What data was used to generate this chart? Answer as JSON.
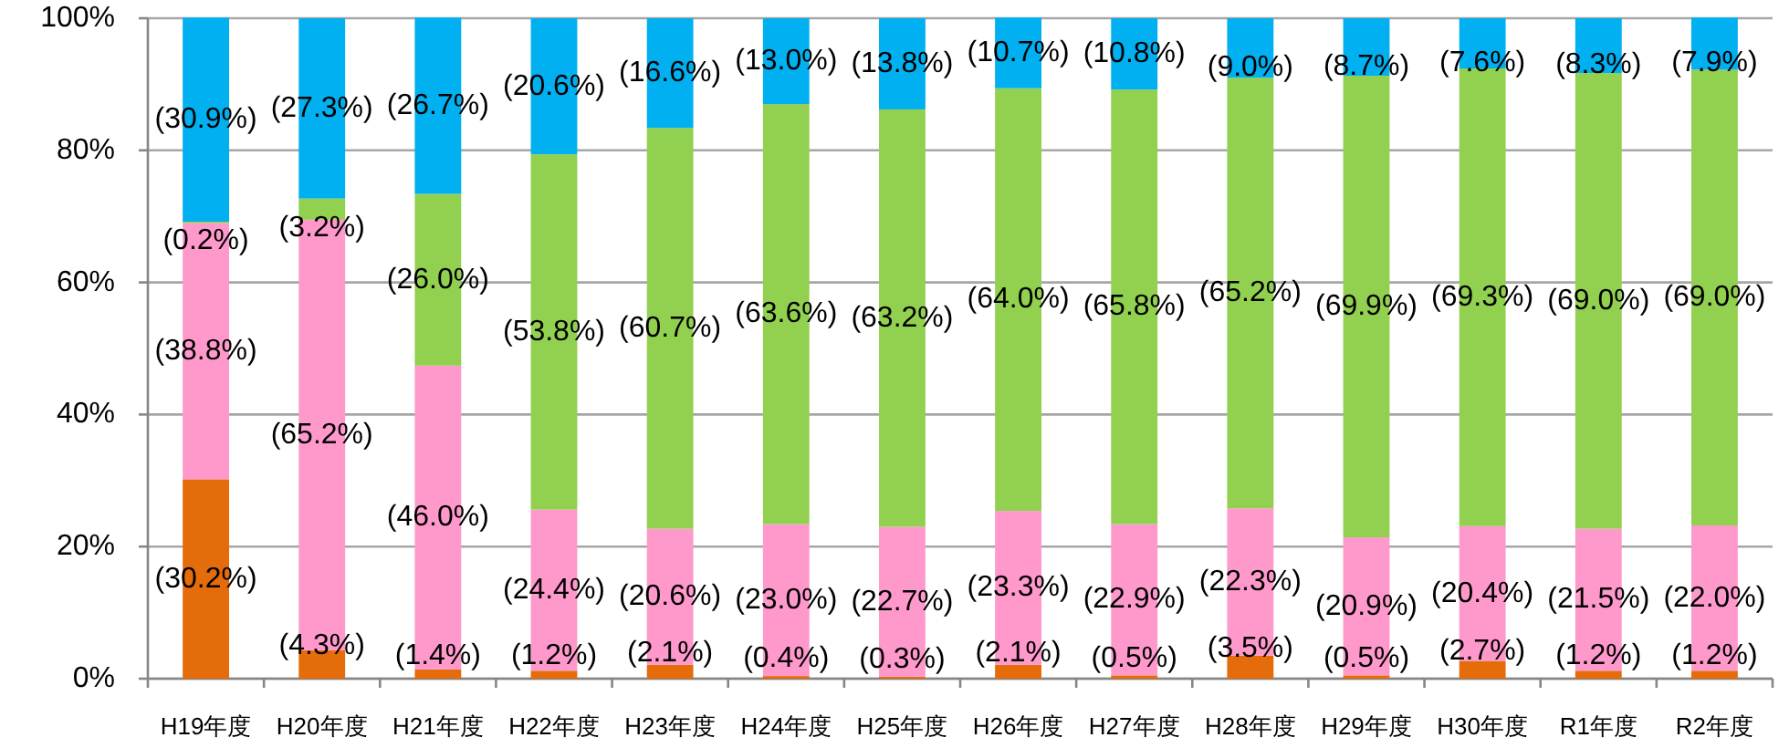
{
  "chart_data": {
    "type": "bar",
    "stacked": true,
    "categories": [
      "H19年度",
      "H20年度",
      "H21年度",
      "H22年度",
      "H23年度",
      "H24年度",
      "H25年度",
      "H26年度",
      "H27年度",
      "H28年度",
      "H29年度",
      "H30年度",
      "R1年度",
      "R2年度"
    ],
    "series": [
      {
        "color": "#e46c0a",
        "values": [
          30.2,
          4.3,
          1.4,
          1.2,
          2.1,
          0.4,
          0.3,
          2.1,
          0.5,
          3.5,
          0.5,
          2.7,
          1.2,
          1.2
        ],
        "value_labels": [
          "(30.2%)",
          "(4.3%)",
          "(1.4%)",
          "(1.2%)",
          "(2.1%)",
          "(0.4%)",
          "(0.3%)",
          "(2.1%)",
          "(0.5%)",
          "(3.5%)",
          "(0.5%)",
          "(2.7%)",
          "(1.2%)",
          "(1.2%)"
        ]
      },
      {
        "color": "#ff99cc",
        "values": [
          38.8,
          65.2,
          46.0,
          24.4,
          20.6,
          23.0,
          22.7,
          23.3,
          22.9,
          22.3,
          20.9,
          20.4,
          21.5,
          22.0
        ],
        "value_labels": [
          "(38.8%)",
          "(65.2%)",
          "(46.0%)",
          "(24.4%)",
          "(20.6%)",
          "(23.0%)",
          "(22.7%)",
          "(23.3%)",
          "(22.9%)",
          "(22.3%)",
          "(20.9%)",
          "(20.4%)",
          "(21.5%)",
          "(22.0%)"
        ]
      },
      {
        "color": "#92d050",
        "values": [
          0.2,
          3.2,
          26.0,
          53.8,
          60.7,
          63.6,
          63.2,
          64.0,
          65.8,
          65.2,
          69.9,
          69.3,
          69.0,
          69.0
        ],
        "value_labels": [
          "(0.2%)",
          "(3.2%)",
          "(26.0%)",
          "(53.8%)",
          "(60.7%)",
          "(63.6%)",
          "(63.2%)",
          "(64.0%)",
          "(65.8%)",
          "(65.2%)",
          "(69.9%)",
          "(69.3%)",
          "(69.0%)",
          "(69.0%)"
        ]
      },
      {
        "color": "#00b0f0",
        "values": [
          30.9,
          27.3,
          26.7,
          20.6,
          16.6,
          13.0,
          13.8,
          10.7,
          10.8,
          9.0,
          8.7,
          7.6,
          8.3,
          7.9
        ],
        "value_labels": [
          "(30.9%)",
          "(27.3%)",
          "(26.7%)",
          "(20.6%)",
          "(16.6%)",
          "(13.0%)",
          "(13.8%)",
          "(10.7%)",
          "(10.8%)",
          "(9.0%)",
          "(8.7%)",
          "(7.6%)",
          "(8.3%)",
          "(7.9%)"
        ]
      }
    ],
    "ylim": [
      0,
      100
    ],
    "yticks": [
      {
        "value": 0,
        "label": "0%"
      },
      {
        "value": 20,
        "label": "20%"
      },
      {
        "value": 40,
        "label": "40%"
      },
      {
        "value": 60,
        "label": "60%"
      },
      {
        "value": 80,
        "label": "80%"
      },
      {
        "value": 100,
        "label": "100%"
      }
    ],
    "grid": "y"
  }
}
